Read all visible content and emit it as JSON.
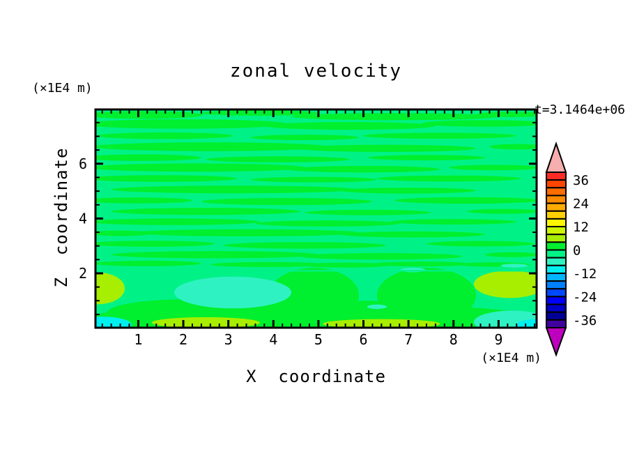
{
  "window": {
    "background": "#ffffff"
  },
  "title": "zonal velocity",
  "time_label": "t=3.1464e+06",
  "axes": {
    "x": {
      "title": "X  coordinate",
      "unit": "(×1E4 m)",
      "major_ticks": [
        1,
        2,
        3,
        4,
        5,
        6,
        7,
        8,
        9
      ],
      "minor_step": 0.2,
      "range": [
        0.05,
        9.85
      ]
    },
    "z": {
      "title": "Z  coordinate",
      "unit": "(×1E4 m)",
      "major_ticks": [
        2,
        4,
        6
      ],
      "minor_step": 0.5,
      "range": [
        0,
        7.97
      ]
    }
  },
  "colorbar": {
    "tick_labels": [
      36,
      24,
      12,
      0,
      -12,
      -24,
      -36
    ],
    "level_step": 4,
    "max": 40,
    "min": -40,
    "box_colors_top_to_bottom": [
      "#FF2B25",
      "#FF4600",
      "#FF6C00",
      "#FF8C00",
      "#FFAC00",
      "#FFD000",
      "#FFF600",
      "#CCF500",
      "#A8EE00",
      "#00EF2E",
      "#00F287",
      "#2FF2C2",
      "#00F0F0",
      "#00B4FF",
      "#0080FF",
      "#0048FF",
      "#0000FA",
      "#0000C8",
      "#000096",
      "#4000A0"
    ],
    "over_arrow_color": "#F6ADAD",
    "under_arrow_color": "#BE00BE",
    "outline_color": "#000000"
  },
  "chart_data": {
    "type": "filled_contour",
    "title": "zonal velocity",
    "xlabel": "X coordinate (×1E4 m)",
    "ylabel": "Z coordinate (×1E4 m)",
    "time": "t=3.1464e+06",
    "x_range": [
      0.05,
      9.85
    ],
    "z_range": [
      0,
      7.97
    ],
    "contour_interval": 4,
    "labeled_levels": [
      36,
      24,
      12,
      0,
      -12,
      -24,
      -36
    ],
    "palette": {
      "p8": "#A8EE00",
      "g": "#00EF2E",
      "sg": "#00F287",
      "tq": "#2FF2C2",
      "cy": "#00F0F0"
    },
    "palette_meaning": {
      "p8": "u in 4..8",
      "g": "u in 0..4",
      "sg": "u in -4..0 (background)",
      "tq": "u in -8..-4",
      "cy": "u in -12..-8"
    },
    "base_fill": "sg",
    "separator_z": 2.12,
    "field_blobs": [
      [
        1.1,
        7.78,
        1.35,
        0.14,
        "g"
      ],
      [
        3.7,
        7.85,
        1.3,
        0.1,
        "g"
      ],
      [
        6.7,
        7.72,
        2.3,
        0.13,
        "g"
      ],
      [
        9.3,
        7.8,
        0.8,
        0.1,
        "g"
      ],
      [
        2.0,
        7.45,
        2.3,
        0.17,
        "g"
      ],
      [
        5.7,
        7.38,
        1.9,
        0.14,
        "g"
      ],
      [
        8.7,
        7.47,
        1.4,
        0.12,
        "g"
      ],
      [
        1.6,
        7.02,
        1.5,
        0.12,
        "g"
      ],
      [
        4.7,
        6.96,
        1.2,
        0.1,
        "g"
      ],
      [
        7.7,
        7.02,
        1.7,
        0.11,
        "g"
      ],
      [
        2.6,
        6.62,
        2.6,
        0.16,
        "g"
      ],
      [
        6.5,
        6.56,
        2.0,
        0.13,
        "g"
      ],
      [
        9.4,
        6.62,
        0.6,
        0.1,
        "g"
      ],
      [
        1.1,
        6.22,
        1.3,
        0.12,
        "g"
      ],
      [
        4.1,
        6.16,
        1.6,
        0.11,
        "g"
      ],
      [
        7.4,
        6.22,
        1.3,
        0.1,
        "g"
      ],
      [
        2.3,
        5.86,
        2.4,
        0.15,
        "g"
      ],
      [
        6.0,
        5.8,
        1.7,
        0.12,
        "g"
      ],
      [
        8.9,
        5.86,
        1.0,
        0.1,
        "g"
      ],
      [
        1.5,
        5.46,
        1.7,
        0.12,
        "g"
      ],
      [
        4.9,
        5.42,
        1.4,
        0.1,
        "g"
      ],
      [
        7.9,
        5.46,
        1.6,
        0.11,
        "g"
      ],
      [
        3.1,
        5.06,
        2.7,
        0.14,
        "g"
      ],
      [
        7.0,
        5.02,
        1.5,
        0.11,
        "g"
      ],
      [
        1.0,
        4.66,
        1.2,
        0.11,
        "g"
      ],
      [
        4.3,
        4.62,
        1.9,
        0.13,
        "g"
      ],
      [
        8.3,
        4.66,
        1.6,
        0.12,
        "g"
      ],
      [
        2.5,
        4.26,
        2.1,
        0.13,
        "g"
      ],
      [
        6.1,
        4.22,
        1.4,
        0.1,
        "g"
      ],
      [
        9.1,
        4.26,
        0.8,
        0.09,
        "g"
      ],
      [
        1.8,
        3.88,
        1.9,
        0.12,
        "g"
      ],
      [
        5.2,
        3.82,
        1.6,
        0.11,
        "g"
      ],
      [
        8.0,
        3.88,
        1.4,
        0.1,
        "g"
      ],
      [
        3.4,
        3.48,
        2.5,
        0.13,
        "g"
      ],
      [
        7.1,
        3.42,
        1.6,
        0.11,
        "g"
      ],
      [
        0.6,
        3.46,
        0.7,
        0.1,
        "g"
      ],
      [
        1.3,
        3.08,
        1.4,
        0.11,
        "g"
      ],
      [
        4.7,
        3.02,
        1.8,
        0.12,
        "g"
      ],
      [
        8.6,
        3.08,
        1.2,
        0.1,
        "g"
      ],
      [
        2.7,
        2.68,
        2.3,
        0.13,
        "g"
      ],
      [
        6.4,
        2.62,
        1.8,
        0.12,
        "g"
      ],
      [
        9.3,
        2.68,
        0.6,
        0.09,
        "g"
      ],
      [
        1.2,
        2.36,
        1.2,
        0.1,
        "g"
      ],
      [
        3.9,
        2.32,
        1.3,
        0.09,
        "g"
      ],
      [
        5.6,
        2.3,
        1.0,
        0.09,
        "g"
      ],
      [
        7.3,
        2.34,
        1.1,
        0.09,
        "g"
      ],
      [
        8.9,
        2.32,
        0.8,
        0.08,
        "g"
      ],
      [
        4.95,
        0.3,
        5.2,
        0.6,
        "g"
      ],
      [
        2.0,
        0.55,
        1.7,
        0.5,
        "g"
      ],
      [
        4.9,
        1.2,
        1.0,
        1.0,
        "g"
      ],
      [
        7.4,
        1.2,
        1.1,
        1.0,
        "g"
      ],
      [
        6.1,
        0.6,
        1.0,
        0.4,
        "g"
      ],
      [
        3.1,
        1.3,
        1.3,
        0.58,
        "tq"
      ],
      [
        7.1,
        2.12,
        0.28,
        0.08,
        "tq"
      ],
      [
        6.3,
        0.78,
        0.22,
        0.08,
        "tq"
      ],
      [
        9.35,
        2.28,
        0.3,
        0.07,
        "tq"
      ],
      [
        0.1,
        1.45,
        0.6,
        0.58,
        "p8"
      ],
      [
        9.25,
        1.6,
        0.8,
        0.5,
        "p8"
      ],
      [
        2.5,
        0.2,
        1.2,
        0.2,
        "p8"
      ],
      [
        6.4,
        0.16,
        1.3,
        0.17,
        "p8"
      ],
      [
        0.2,
        0.12,
        0.65,
        0.3,
        "cy"
      ],
      [
        9.3,
        0.22,
        0.85,
        0.42,
        "tq"
      ],
      [
        9.8,
        0.1,
        0.4,
        0.22,
        "cy"
      ]
    ]
  }
}
